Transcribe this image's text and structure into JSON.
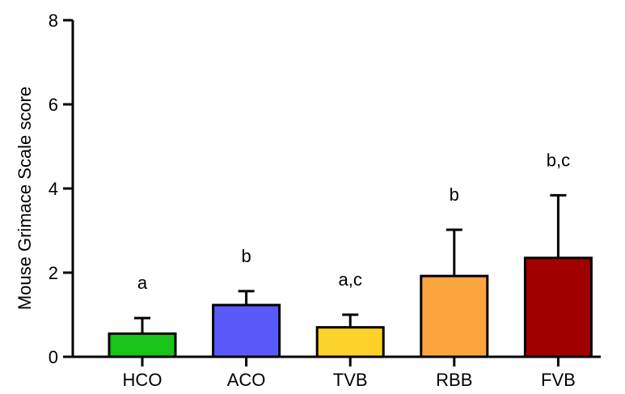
{
  "chart_data": {
    "type": "bar",
    "title": "",
    "xlabel": "",
    "ylabel": "Mouse Grimace Scale score",
    "ylim": [
      0,
      8
    ],
    "yticks": [
      0,
      2,
      4,
      6,
      8
    ],
    "grid": false,
    "categories": [
      "HCO",
      "ACO",
      "TVB",
      "RBB",
      "FVB"
    ],
    "values": [
      0.55,
      1.23,
      0.7,
      1.92,
      2.35
    ],
    "error_upper": [
      0.92,
      1.56,
      1.0,
      3.02,
      3.84
    ],
    "significance": [
      "a",
      "b",
      "a,c",
      "b",
      "b,c"
    ],
    "colors": [
      "#18c418",
      "#5a5afa",
      "#fcd12a",
      "#fca53f",
      "#a10000"
    ],
    "edge_color": "#000000"
  }
}
